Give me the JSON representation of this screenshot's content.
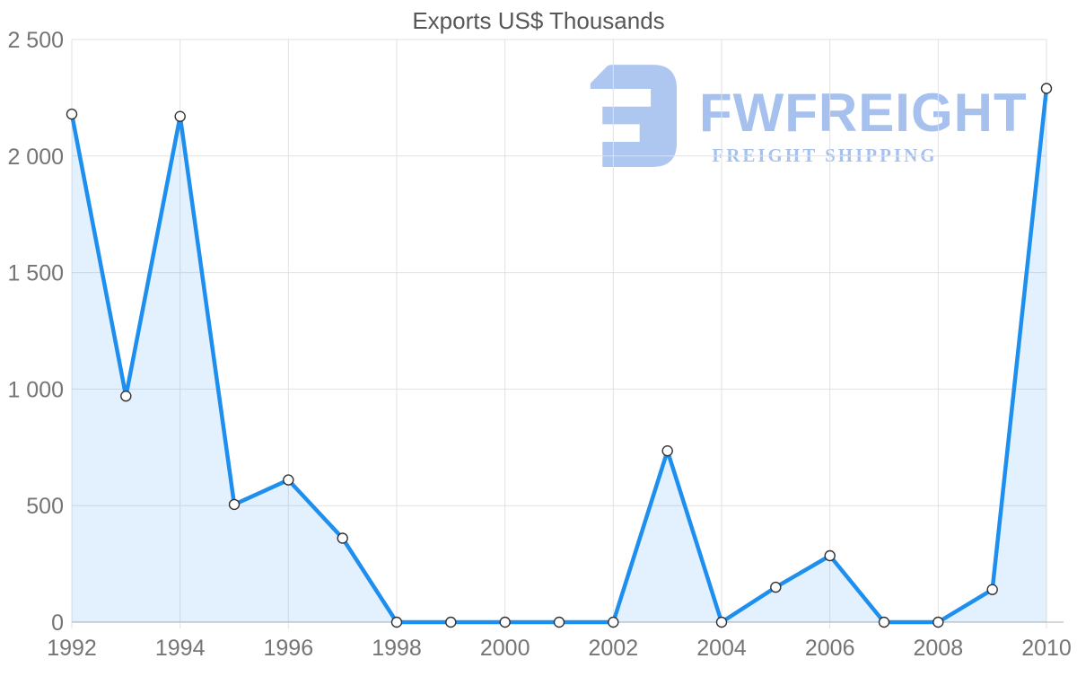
{
  "chart_data": {
    "type": "area",
    "title": "Exports US$ Thousands",
    "x": [
      1992,
      1993,
      1994,
      1995,
      1996,
      1997,
      1998,
      1999,
      2000,
      2001,
      2002,
      2003,
      2004,
      2005,
      2006,
      2007,
      2008,
      2009,
      2010
    ],
    "values": [
      2180,
      970,
      2170,
      505,
      610,
      360,
      0,
      0,
      0,
      0,
      0,
      735,
      0,
      150,
      285,
      0,
      0,
      140,
      2290
    ],
    "x_ticks": [
      1992,
      1994,
      1996,
      1998,
      2000,
      2002,
      2004,
      2006,
      2008,
      2010
    ],
    "x_tick_labels": [
      "1992",
      "1994",
      "1996",
      "1998",
      "2000",
      "2002",
      "2004",
      "2006",
      "2008",
      "2010"
    ],
    "y_ticks": [
      0,
      500,
      1000,
      1500,
      2000,
      2500
    ],
    "y_tick_labels": [
      "0",
      "500",
      "1 000",
      "1 500",
      "2 000",
      "2 500"
    ],
    "ylim": [
      0,
      2500
    ],
    "xlabel": "",
    "ylabel": "",
    "grid": true,
    "legend": "none",
    "marker": "circle",
    "colors": {
      "line": "#1e8fee",
      "fill": "rgba(30,143,238,0.13)",
      "marker_fill": "#ffffff",
      "marker_stroke": "#333333",
      "grid": "#e2e2e2",
      "axis": "#c8c8c8",
      "label": "#757575",
      "title": "#575757"
    }
  },
  "logo": {
    "brand": "FWFREIGHT",
    "tagline": "FREIGHT SHIPPING",
    "color": "#a6c1ee",
    "icon": "fwfreight-logo-icon"
  }
}
